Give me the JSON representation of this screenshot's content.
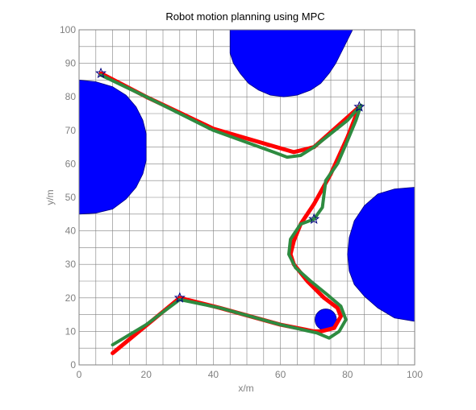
{
  "chart_data": {
    "type": "line",
    "title": "Robot motion planning using MPC",
    "xlabel": "x/m",
    "ylabel": "y/m",
    "xlim": [
      0,
      100
    ],
    "ylim": [
      0,
      100
    ],
    "x_ticks": [
      "0",
      "20",
      "40",
      "60",
      "80",
      "100"
    ],
    "y_ticks": [
      "0",
      "10",
      "20",
      "30",
      "40",
      "50",
      "60",
      "70",
      "80",
      "90",
      "100"
    ],
    "grid": true,
    "grid_step": 5,
    "colors": {
      "obstacle": "#0000ff",
      "reference": "#ff0000",
      "actual": "#2e8b40",
      "waypoint": "#000080",
      "grid": "#808080",
      "frame": "#808080"
    },
    "obstacles": [
      {
        "name": "left",
        "polygon": [
          [
            0,
            85
          ],
          [
            5,
            84.5
          ],
          [
            10,
            83
          ],
          [
            14,
            80.5
          ],
          [
            17,
            77
          ],
          [
            19,
            73
          ],
          [
            20,
            69
          ],
          [
            20,
            61
          ],
          [
            19,
            57
          ],
          [
            17,
            53
          ],
          [
            14,
            49.5
          ],
          [
            10,
            46.5
          ],
          [
            5,
            45.3
          ],
          [
            0,
            45
          ]
        ]
      },
      {
        "name": "top",
        "polygon": [
          [
            45,
            100
          ],
          [
            45,
            93
          ],
          [
            46,
            90
          ],
          [
            48,
            87
          ],
          [
            50.5,
            84
          ],
          [
            53.5,
            82
          ],
          [
            57,
            80.5
          ],
          [
            61,
            80
          ],
          [
            65,
            80.5
          ],
          [
            69,
            82
          ],
          [
            72,
            84
          ],
          [
            74.5,
            87
          ],
          [
            76.5,
            90
          ],
          [
            78,
            93
          ],
          [
            81.5,
            100
          ]
        ]
      },
      {
        "name": "right",
        "polygon": [
          [
            100,
            53
          ],
          [
            94,
            52.5
          ],
          [
            89,
            51
          ],
          [
            85,
            47.5
          ],
          [
            82,
            43
          ],
          [
            80.5,
            38
          ],
          [
            80,
            33
          ],
          [
            80.5,
            28
          ],
          [
            82,
            24
          ],
          [
            85,
            20.5
          ],
          [
            89,
            17
          ],
          [
            94,
            14
          ],
          [
            100,
            13
          ]
        ]
      },
      {
        "name": "small",
        "center": [
          73.5,
          13.5
        ],
        "radius": 3.2
      }
    ],
    "waypoints": [
      [
        6.5,
        87
      ],
      [
        83.5,
        77
      ],
      [
        70,
        43.5
      ],
      [
        30,
        20
      ]
    ],
    "series": [
      {
        "role": "reference",
        "x": [
          10,
          30,
          42,
          60,
          70,
          72,
          76,
          78,
          77,
          73,
          68,
          64,
          63,
          64,
          66,
          70,
          75,
          80,
          83.5,
          70,
          64,
          40,
          20,
          6.5
        ],
        "y": [
          3.5,
          20,
          17,
          12,
          10,
          10,
          11,
          14.5,
          17,
          20,
          25,
          30,
          33,
          37,
          42,
          48,
          57,
          68,
          77,
          65,
          63.5,
          70.5,
          80,
          87
        ]
      },
      {
        "role": "actual",
        "x": [
          10,
          20,
          30,
          42,
          60,
          71,
          74.5,
          77.5,
          79.5,
          78,
          74.5,
          69,
          64.5,
          62.5,
          63,
          66,
          70,
          72.5,
          73.5,
          77,
          80,
          82.5,
          84,
          80,
          75,
          70,
          66,
          62,
          58,
          40,
          20,
          6.5
        ],
        "y": [
          6,
          12,
          19.5,
          17,
          12,
          9.5,
          8,
          10,
          13.5,
          17.5,
          20.5,
          25,
          29,
          33,
          37.5,
          42,
          43.5,
          47,
          55,
          60,
          67,
          73,
          77.5,
          73,
          69,
          65,
          62.5,
          62,
          63.5,
          70,
          80,
          86.5
        ]
      }
    ]
  }
}
